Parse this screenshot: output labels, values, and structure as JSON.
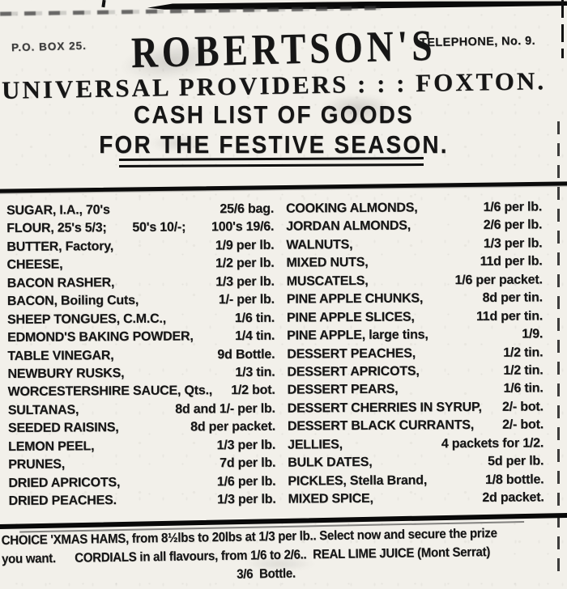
{
  "colors": {
    "paper": "#f2f0ea",
    "ink": "#161616",
    "faded_ink": "#3d3d3d"
  },
  "header": {
    "po_box": "P.O. BOX 25.",
    "store_name": "ROBERTSON'S",
    "telephone": "TELEPHONE, No. 9.",
    "subtitle": "UNIVERSAL PROVIDERS : : : FOXTON.",
    "headline_line1": "CASH LIST OF GOODS",
    "headline_line2": "FOR THE FESTIVE SEASON."
  },
  "price_list": {
    "left": [
      {
        "name": "SUGAR, I.A., 70's",
        "price": "25/6 bag."
      },
      {
        "name": "FLOUR, 25's 5/3;",
        "mid": "50's 10/-;",
        "price": "100's 19/6."
      },
      {
        "name": "BUTTER, Factory,",
        "price": "1/9 per lb."
      },
      {
        "name": "CHEESE,",
        "price": "1/2 per lb."
      },
      {
        "name": "BACON RASHER,",
        "price": "1/3 per lb."
      },
      {
        "name": "BACON, Boiling Cuts,",
        "price": "1/- per lb."
      },
      {
        "name": "SHEEP TONGUES, C.M.C.,",
        "price": "1/6 tin."
      },
      {
        "name": "EDMOND'S BAKING POWDER,",
        "price": "1/4 tin."
      },
      {
        "name": "TABLE VINEGAR,",
        "price": "9d Bottle."
      },
      {
        "name": "NEWBURY RUSKS,",
        "price": "1/3 tin."
      },
      {
        "name": "WORCESTERSHIRE SAUCE, Qts.,",
        "price": "1/2 bot."
      },
      {
        "name": "SULTANAS,",
        "price": "8d and 1/- per lb."
      },
      {
        "name": "SEEDED RAISINS,",
        "price": "8d per packet."
      },
      {
        "name": "LEMON PEEL,",
        "price": "1/3 per lb."
      },
      {
        "name": "PRUNES,",
        "price": "7d per lb."
      },
      {
        "name": "DRIED APRICOTS,",
        "price": "1/6 per lb."
      },
      {
        "name": "DRIED PEACHES.",
        "price": "1/3 per lb."
      }
    ],
    "right": [
      {
        "name": "COOKING ALMONDS,",
        "price": "1/6 per lb."
      },
      {
        "name": "JORDAN ALMONDS,",
        "price": "2/6 per lb."
      },
      {
        "name": "WALNUTS,",
        "price": "1/3 per lb."
      },
      {
        "name": "MIXED NUTS,",
        "price": "11d per lb."
      },
      {
        "name": "MUSCATELS,",
        "price": "1/6 per packet."
      },
      {
        "name": "PINE APPLE CHUNKS,",
        "price": "8d per tin."
      },
      {
        "name": "PINE APPLE SLICES,",
        "price": "11d per tin."
      },
      {
        "name": "PINE APPLE, large tins,",
        "price": "1/9."
      },
      {
        "name": "DESSERT PEACHES,",
        "price": "1/2 tin."
      },
      {
        "name": "DESSERT APRICOTS,",
        "price": "1/2 tin."
      },
      {
        "name": "DESSERT PEARS,",
        "price": "1/6 tin."
      },
      {
        "name": "DESSERT CHERRIES IN SYRUP,",
        "price": "2/- bot."
      },
      {
        "name": "DESSERT BLACK CURRANTS,",
        "price": "2/- bot."
      },
      {
        "name": "JELLIES,",
        "price": "4 packets for 1/2."
      },
      {
        "name": "BULK DATES,",
        "price": "5d per lb."
      },
      {
        "name": "PICKLES, Stella Brand,",
        "price": "1/8 bottle."
      },
      {
        "name": "MIXED SPICE,",
        "price": "2d packet."
      }
    ]
  },
  "footer": {
    "line1": "CHOICE 'XMAS HAMS, from 8½lbs to 20lbs at 1/3 per lb.. Select now and secure the prize",
    "line2": "you want.      CORDIALS in all flavours, from 1/6 to 2/6..  REAL LIME JUICE (Mont Serrat)",
    "line3": "3/6  Bottle."
  }
}
